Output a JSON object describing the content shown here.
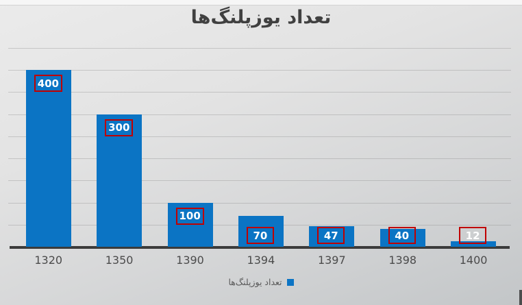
{
  "title": {
    "text": "تعداد یوزپلنگ‌ها"
  },
  "legend": {
    "label": "تعداد یوزپلنگ‌ها",
    "marker_color": "#0b74c4"
  },
  "chart_data": {
    "type": "bar",
    "title": "تعداد یوزپلنگ‌ها",
    "categories": [
      "1320",
      "1350",
      "1390",
      "1394",
      "1397",
      "1398",
      "1400"
    ],
    "values": [
      400,
      300,
      100,
      70,
      47,
      40,
      12
    ],
    "series_name": "تعداد یوزپلنگ‌ها",
    "xlabel": "",
    "ylabel": "",
    "ylim": [
      0,
      450
    ],
    "gridline_step": 50,
    "grid": true,
    "y_axis_labels_visible": false,
    "legend_position": "bottom-center",
    "data_labels": {
      "visible": true,
      "position": "inside-end",
      "boxed": true,
      "box_border_color": "#c00000",
      "text_color": "#ffffff"
    }
  },
  "colors": {
    "bar": "#0b74c4",
    "label_box_border": "#c00000",
    "label_text": "#ffffff",
    "title_text": "#404040",
    "axis_text": "#4b4b4b",
    "axis_line": "#3b3b3b",
    "gridline": "#828282"
  }
}
